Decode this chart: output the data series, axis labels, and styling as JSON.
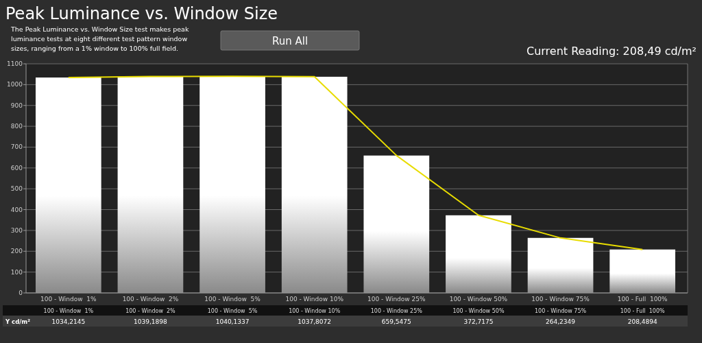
{
  "chart_data": {
    "type": "bar",
    "title": "Peak Luminance vs. Window Size",
    "subtitle": "The Peak Luminance vs. Window Size test makes peak luminance tests at eight different test pattern window sizes, ranging from a 1% window to 100% full field.",
    "annotations": [
      "Run All",
      "Current Reading: 208,49 cd/m²"
    ],
    "categories": [
      "100 - Window  1%",
      "100 - Window  2%",
      "100 - Window  5%",
      "100 - Window 10%",
      "100 - Window 25%",
      "100 - Window 50%",
      "100 - Window 75%",
      "100 - Full  100%"
    ],
    "series": [
      {
        "name": "Y cd/m²",
        "color": "#ffffff",
        "values": [
          1034.2145,
          1039.1898,
          1040.1337,
          1037.8072,
          659.5475,
          372.7175,
          264.2349,
          208.4894
        ],
        "value_labels": [
          "1034,2145",
          "1039,1898",
          "1040,1337",
          "1037,8072",
          "659,5475",
          "372,7175",
          "264,2349",
          "208,4894"
        ]
      },
      {
        "type": "line",
        "color": "#e8dc00",
        "values": [
          1034,
          1039,
          1040,
          1038,
          660,
          373,
          264,
          208
        ]
      }
    ],
    "ylim": [
      0,
      1100
    ],
    "yticks": [
      0,
      100,
      200,
      300,
      400,
      500,
      600,
      700,
      800,
      900,
      1000,
      1100
    ],
    "grid": "y"
  }
}
